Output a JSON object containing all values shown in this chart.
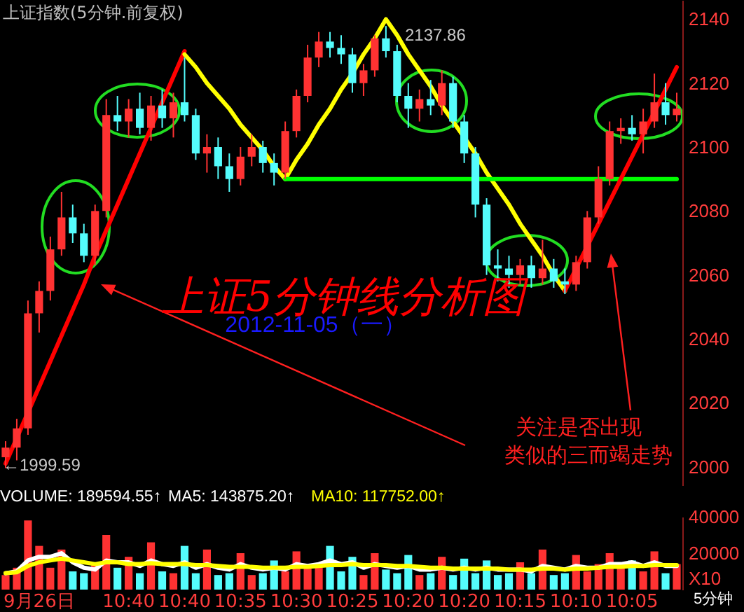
{
  "chart_data": [
    {
      "type": "candlestick",
      "title": "上证指数(5分钟.前复权)",
      "categories": [
        null,
        null,
        null,
        null,
        null,
        null,
        null,
        null,
        null,
        null,
        null,
        null,
        null,
        null,
        null,
        null,
        null,
        null,
        null,
        null,
        null,
        null,
        null,
        null,
        null,
        null,
        null,
        null,
        null,
        null,
        null,
        null,
        null,
        null,
        null,
        null,
        null,
        null,
        null,
        null,
        null,
        null,
        null,
        null,
        null,
        null,
        null,
        null,
        null,
        null,
        null,
        null,
        null,
        null,
        null,
        null,
        null,
        null,
        null,
        null,
        null
      ],
      "ohlc": [
        [
          2003,
          2008,
          1999.59,
          2006
        ],
        [
          2006,
          2015,
          2002,
          2012
        ],
        [
          2012,
          2052,
          2010,
          2048
        ],
        [
          2048,
          2058,
          2042,
          2055
        ],
        [
          2055,
          2072,
          2052,
          2068
        ],
        [
          2068,
          2086,
          2066,
          2078
        ],
        [
          2078,
          2082,
          2070,
          2073
        ],
        [
          2073,
          2076,
          2064,
          2066
        ],
        [
          2066,
          2082,
          2063,
          2080
        ],
        [
          2080,
          2115,
          2078,
          2110
        ],
        [
          2110,
          2116,
          2105,
          2108
        ],
        [
          2108,
          2115,
          2103,
          2112
        ],
        [
          2112,
          2117,
          2104,
          2106
        ],
        [
          2106,
          2116,
          2102,
          2113
        ],
        [
          2113,
          2118,
          2106,
          2109
        ],
        [
          2109,
          2117,
          2103,
          2114
        ],
        [
          2114,
          2128,
          2108,
          2110
        ],
        [
          2110,
          2112,
          2096,
          2098
        ],
        [
          2098,
          2104,
          2092,
          2100
        ],
        [
          2100,
          2103,
          2090,
          2094
        ],
        [
          2094,
          2098,
          2086,
          2090
        ],
        [
          2090,
          2100,
          2088,
          2097
        ],
        [
          2097,
          2104,
          2094,
          2100
        ],
        [
          2100,
          2102,
          2092,
          2095
        ],
        [
          2095,
          2098,
          2088,
          2092
        ],
        [
          2092,
          2108,
          2090,
          2105
        ],
        [
          2105,
          2118,
          2103,
          2116
        ],
        [
          2116,
          2132,
          2114,
          2128
        ],
        [
          2128,
          2136,
          2125,
          2133
        ],
        [
          2133,
          2136,
          2128,
          2131
        ],
        [
          2131,
          2135,
          2126,
          2129
        ],
        [
          2129,
          2131,
          2117,
          2120
        ],
        [
          2120,
          2126,
          2116,
          2124
        ],
        [
          2124,
          2135,
          2122,
          2134
        ],
        [
          2134,
          2137.86,
          2128,
          2130
        ],
        [
          2130,
          2132,
          2114,
          2116
        ],
        [
          2116,
          2120,
          2106,
          2112
        ],
        [
          2112,
          2118,
          2108,
          2115
        ],
        [
          2115,
          2121,
          2110,
          2113
        ],
        [
          2113,
          2124,
          2110,
          2120
        ],
        [
          2120,
          2122,
          2106,
          2108
        ],
        [
          2108,
          2110,
          2095,
          2098
        ],
        [
          2098,
          2100,
          2078,
          2082
        ],
        [
          2082,
          2084,
          2060,
          2063
        ],
        [
          2063,
          2068,
          2058,
          2062
        ],
        [
          2062,
          2066,
          2056,
          2060
        ],
        [
          2060,
          2065,
          2057,
          2063
        ],
        [
          2063,
          2066,
          2056,
          2059
        ],
        [
          2059,
          2071,
          2057,
          2062
        ],
        [
          2062,
          2065,
          2056,
          2058
        ],
        [
          2058,
          2062,
          2054,
          2057
        ],
        [
          2057,
          2066,
          2055,
          2064
        ],
        [
          2064,
          2080,
          2062,
          2078
        ],
        [
          2078,
          2094,
          2076,
          2090
        ],
        [
          2090,
          2108,
          2088,
          2105
        ],
        [
          2105,
          2109,
          2101,
          2106
        ],
        [
          2106,
          2110,
          2102,
          2104
        ],
        [
          2104,
          2112,
          2098,
          2108
        ],
        [
          2108,
          2123,
          2106,
          2114
        ],
        [
          2114,
          2120,
          2107,
          2110
        ],
        [
          2110,
          2117,
          2108,
          2112
        ]
      ],
      "series": [
        {
          "type": "line",
          "color": "#ff0000",
          "values": [
            2001,
            2009,
            2017,
            2025,
            2033,
            2041,
            2049,
            2057,
            2066,
            2074,
            2082,
            2090,
            2098,
            2106,
            2114,
            2122,
            2130,
            null,
            null,
            null,
            null,
            null,
            null,
            null,
            null,
            null,
            null,
            null,
            null,
            null,
            null,
            null,
            null,
            null,
            null,
            null,
            null,
            null,
            null,
            null,
            null,
            null,
            null,
            null,
            null,
            null,
            null,
            null,
            null,
            null,
            null,
            null,
            null,
            null,
            null,
            null,
            null,
            null,
            null,
            null,
            null
          ]
        },
        {
          "type": "line",
          "color": "#ffff00",
          "values": [
            null,
            null,
            null,
            null,
            null,
            null,
            null,
            null,
            null,
            null,
            null,
            null,
            null,
            null,
            null,
            null,
            2129,
            2125,
            2120,
            2116,
            2112,
            2107,
            2103,
            2099,
            2094,
            2090,
            2096,
            2101,
            2107,
            2112,
            2118,
            2123,
            2129,
            2134,
            2140,
            2135,
            2129,
            2124,
            2119,
            2113,
            2108,
            2103,
            2098,
            2092,
            2087,
            2082,
            2076,
            2071,
            2066,
            2060,
            2055,
            null,
            null,
            null,
            null,
            null,
            null,
            null,
            null,
            null,
            null
          ]
        },
        {
          "type": "line",
          "color": "#00ff00",
          "values": [
            null,
            null,
            null,
            null,
            null,
            null,
            null,
            null,
            null,
            null,
            null,
            null,
            null,
            null,
            null,
            null,
            null,
            null,
            null,
            null,
            null,
            null,
            null,
            null,
            null,
            2090,
            2090,
            2090,
            2090,
            2090,
            2090,
            2090,
            2090,
            2090,
            2090,
            2090,
            2090,
            2090,
            2090,
            2090,
            2090,
            2090,
            2090,
            2090,
            2090,
            2090,
            2090,
            2090,
            2090,
            2090,
            2090,
            2090,
            2090,
            2090,
            2090,
            2090,
            2090,
            2090,
            2090,
            2090,
            2090
          ]
        },
        {
          "type": "line",
          "color": "#ff0000",
          "values": [
            null,
            null,
            null,
            null,
            null,
            null,
            null,
            null,
            null,
            null,
            null,
            null,
            null,
            null,
            null,
            null,
            null,
            null,
            null,
            null,
            null,
            null,
            null,
            null,
            null,
            null,
            null,
            null,
            null,
            null,
            null,
            null,
            null,
            null,
            null,
            null,
            null,
            null,
            null,
            null,
            null,
            null,
            null,
            null,
            null,
            null,
            null,
            null,
            null,
            null,
            2055,
            2062,
            2069,
            2076,
            2083,
            2090,
            2097,
            2104,
            2111,
            2118,
            2125
          ]
        }
      ],
      "ylim": [
        1994,
        2146
      ],
      "yticks": [
        2000,
        2020,
        2040,
        2060,
        2080,
        2100,
        2120,
        2140
      ],
      "tick_labels": "y",
      "annotations": [
        "2137.86",
        "←1999.59",
        "上证5分钟线分析图",
        "2012-11-05（一）",
        "关注是否出现",
        "类似的三而竭走势"
      ]
    },
    {
      "type": "bar",
      "categories": [
        null,
        null,
        null,
        "9月26日",
        null,
        null,
        null,
        null,
        null,
        null,
        null,
        "10:40",
        null,
        null,
        null,
        null,
        "10:40",
        null,
        null,
        null,
        null,
        "10:35",
        null,
        null,
        null,
        null,
        "10:30",
        null,
        null,
        null,
        null,
        "10:25",
        null,
        null,
        null,
        null,
        "10:20",
        null,
        null,
        null,
        null,
        "10:20",
        null,
        null,
        null,
        null,
        "10:15",
        null,
        null,
        null,
        null,
        "10:10",
        null,
        null,
        null,
        null,
        "10:05",
        null,
        null,
        null,
        null
      ],
      "series": [
        {
          "type": "bar",
          "colors": [
            "#ff3232",
            "#ff3232",
            "#ff3232",
            "#ff3232",
            "#ff3232",
            "#ff3232",
            "#54fcfc",
            "#54fcfc",
            "#ff3232",
            "#ff3232",
            "#54fcfc",
            "#ff3232",
            "#54fcfc",
            "#ff3232",
            "#54fcfc",
            "#ff3232",
            "#54fcfc",
            "#54fcfc",
            "#ff3232",
            "#54fcfc",
            "#54fcfc",
            "#ff3232",
            "#ff3232",
            "#54fcfc",
            "#54fcfc",
            "#ff3232",
            "#ff3232",
            "#ff3232",
            "#ff3232",
            "#54fcfc",
            "#54fcfc",
            "#54fcfc",
            "#ff3232",
            "#ff3232",
            "#54fcfc",
            "#54fcfc",
            "#54fcfc",
            "#ff3232",
            "#54fcfc",
            "#ff3232",
            "#54fcfc",
            "#54fcfc",
            "#54fcfc",
            "#54fcfc",
            "#54fcfc",
            "#54fcfc",
            "#ff3232",
            "#54fcfc",
            "#ff3232",
            "#54fcfc",
            "#54fcfc",
            "#ff3232",
            "#ff3232",
            "#ff3232",
            "#ff3232",
            "#ff3232",
            "#54fcfc",
            "#ff3232",
            "#ff3232",
            "#54fcfc",
            "#ff3232"
          ],
          "values": [
            8000,
            12000,
            38000,
            24000,
            12000,
            22000,
            10000,
            9000,
            14000,
            30000,
            12000,
            18000,
            9000,
            26000,
            10000,
            9000,
            24000,
            9000,
            22000,
            8000,
            9000,
            20000,
            8000,
            9000,
            16000,
            10000,
            21000,
            12000,
            14000,
            24000,
            10000,
            18000,
            8000,
            20000,
            11000,
            9000,
            19000,
            8000,
            9000,
            18000,
            8000,
            17000,
            9000,
            16000,
            8000,
            9000,
            15000,
            9000,
            22000,
            8000,
            9000,
            19000,
            10000,
            14000,
            20000,
            12000,
            16000,
            10000,
            21000,
            9000,
            14000
          ]
        },
        {
          "type": "line",
          "color": "#ffffff",
          "values": [
            9000,
            10000,
            16000,
            18000,
            18000,
            20000,
            15000,
            12000,
            11000,
            16000,
            15000,
            15000,
            13000,
            16000,
            14000,
            13000,
            15000,
            12000,
            14000,
            12000,
            11000,
            14000,
            12000,
            11000,
            12000,
            11000,
            14000,
            13000,
            14000,
            16000,
            14000,
            15000,
            12000,
            14000,
            13000,
            12000,
            13000,
            11000,
            11000,
            12000,
            11000,
            12000,
            11000,
            12000,
            11000,
            11000,
            11000,
            10000,
            13000,
            12000,
            11000,
            13000,
            12000,
            12000,
            14000,
            14000,
            15000,
            13000,
            15000,
            13000,
            13000
          ]
        },
        {
          "type": "line",
          "color": "#ffff00",
          "values": [
            9000,
            9500,
            13000,
            15000,
            16000,
            17000,
            16000,
            15000,
            14000,
            15000,
            15000,
            14000,
            14000,
            14500,
            14000,
            14000,
            14000,
            13500,
            13500,
            13000,
            12500,
            12500,
            12500,
            12000,
            12000,
            12000,
            12500,
            12500,
            13000,
            13500,
            13500,
            14000,
            13500,
            13500,
            13500,
            13000,
            13000,
            12500,
            12000,
            12000,
            11500,
            11500,
            11500,
            11500,
            11500,
            11000,
            11000,
            11000,
            11500,
            11500,
            11000,
            11500,
            11500,
            12000,
            12500,
            12500,
            13000,
            13000,
            13500,
            13500,
            13500
          ]
        }
      ],
      "ylim": [
        0,
        40000
      ],
      "yticks": [
        20000,
        40000
      ],
      "ylabel": "X10",
      "annotations": [
        "VOLUME: 189594.55↑",
        "MA5: 143875.20↑",
        "MA10: 117752.00↑",
        "5分钟"
      ]
    }
  ]
}
